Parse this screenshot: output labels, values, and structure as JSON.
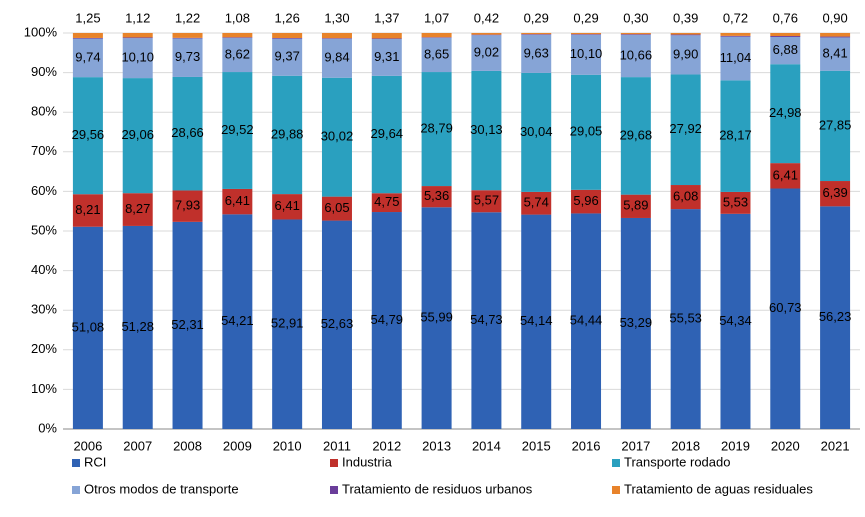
{
  "chart_data": {
    "type": "stacked_bar",
    "categories": [
      "2006",
      "2007",
      "2008",
      "2009",
      "2010",
      "2011",
      "2012",
      "2013",
      "2014",
      "2015",
      "2016",
      "2017",
      "2018",
      "2019",
      "2020",
      "2021"
    ],
    "ylim": [
      0,
      100
    ],
    "yticks": [
      {
        "value": 0,
        "label": "0%"
      },
      {
        "value": 10,
        "label": "10%"
      },
      {
        "value": 20,
        "label": "20%"
      },
      {
        "value": 30,
        "label": "30%"
      },
      {
        "value": 40,
        "label": "40%"
      },
      {
        "value": 50,
        "label": "50%"
      },
      {
        "value": 60,
        "label": "60%"
      },
      {
        "value": 70,
        "label": "70%"
      },
      {
        "value": 80,
        "label": "80%"
      },
      {
        "value": 90,
        "label": "90%"
      },
      {
        "value": 100,
        "label": "100%"
      }
    ],
    "grid": true,
    "series": [
      {
        "name": "RCI",
        "color": "#2f62b4",
        "values": [
          51.08,
          51.28,
          52.31,
          54.21,
          52.91,
          52.63,
          54.79,
          55.99,
          54.73,
          54.14,
          54.44,
          53.29,
          55.53,
          54.34,
          60.73,
          56.23
        ],
        "value_labels": [
          "51,08",
          "51,28",
          "52,31",
          "54,21",
          "52,91",
          "52,63",
          "54,79",
          "55,99",
          "54,73",
          "54,14",
          "54,44",
          "53,29",
          "55,53",
          "54,34",
          "60,73",
          "56,23"
        ]
      },
      {
        "name": "Industria",
        "color": "#c0302b",
        "values": [
          8.21,
          8.27,
          7.93,
          6.41,
          6.41,
          6.05,
          4.75,
          5.36,
          5.57,
          5.74,
          5.96,
          5.89,
          6.08,
          5.53,
          6.41,
          6.39
        ],
        "value_labels": [
          "8,21",
          "8,27",
          "7,93",
          "6,41",
          "6,41",
          "6,05",
          "4,75",
          "5,36",
          "5,57",
          "5,74",
          "5,96",
          "5,89",
          "6,08",
          "5,53",
          "6,41",
          "6,39"
        ]
      },
      {
        "name": "Transporte rodado",
        "color": "#2aa0bf",
        "values": [
          29.56,
          29.06,
          28.66,
          29.52,
          29.88,
          30.02,
          29.64,
          28.79,
          30.13,
          30.04,
          29.05,
          29.68,
          27.92,
          28.17,
          24.98,
          27.85
        ],
        "value_labels": [
          "29,56",
          "29,06",
          "28,66",
          "29,52",
          "29,88",
          "30,02",
          "29,64",
          "28,79",
          "30,13",
          "30,04",
          "29,05",
          "29,68",
          "27,92",
          "28,17",
          "24,98",
          "27,85"
        ]
      },
      {
        "name": "Otros modos de transporte",
        "color": "#86a4d6",
        "values": [
          9.74,
          10.1,
          9.73,
          8.62,
          9.37,
          9.84,
          9.31,
          8.65,
          9.02,
          9.63,
          10.1,
          10.66,
          9.9,
          11.04,
          6.88,
          8.41
        ],
        "value_labels": [
          "9,74",
          "10,10",
          "9,73",
          "8,62",
          "9,37",
          "9,84",
          "9,31",
          "8,65",
          "9,02",
          "9,63",
          "10,10",
          "10,66",
          "9,90",
          "11,04",
          "6,88",
          "8,41"
        ]
      },
      {
        "name": "Tratamiento de residuos urbanos",
        "color": "#6a3d9a",
        "values": [
          0.16,
          0.17,
          0.15,
          0.16,
          0.17,
          0.16,
          0.14,
          0.14,
          0.13,
          0.16,
          0.16,
          0.18,
          0.18,
          0.2,
          0.24,
          0.22
        ]
      },
      {
        "name": "Tratamiento de aguas residuales",
        "color": "#e8832a",
        "values": [
          1.25,
          1.12,
          1.22,
          1.08,
          1.26,
          1.3,
          1.37,
          1.07,
          0.42,
          0.29,
          0.29,
          0.3,
          0.39,
          0.72,
          0.76,
          0.9
        ],
        "value_labels": [
          "1,25",
          "1,12",
          "1,22",
          "1,08",
          "1,26",
          "1,30",
          "1,37",
          "1,07",
          "0,42",
          "0,29",
          "0,29",
          "0,30",
          "0,39",
          "0,72",
          "0,76",
          "0,90"
        ]
      }
    ]
  }
}
